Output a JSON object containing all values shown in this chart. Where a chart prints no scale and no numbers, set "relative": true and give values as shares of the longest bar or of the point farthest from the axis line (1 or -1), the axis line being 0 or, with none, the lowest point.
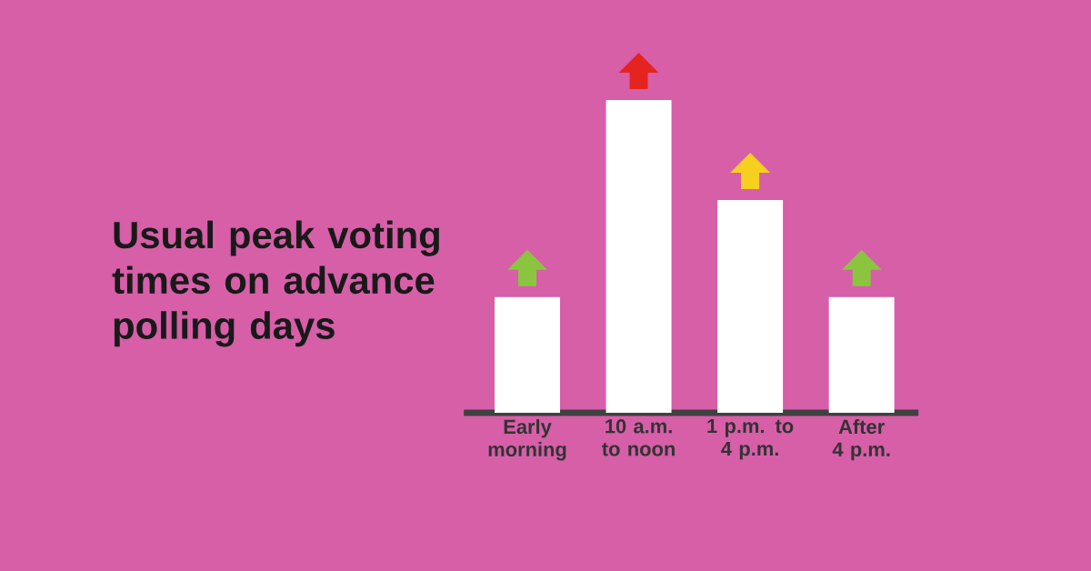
{
  "chart_data": {
    "type": "bar",
    "relative": true,
    "title": "Usual peak voting times on advance polling days",
    "categories": [
      "Early morning",
      "10 a.m. to noon",
      "1 p.m. to 4 p.m.",
      "After 4 p.m."
    ],
    "values": [
      0.37,
      1,
      0.68,
      0.37
    ],
    "color": "#ffffff"
  }
}
